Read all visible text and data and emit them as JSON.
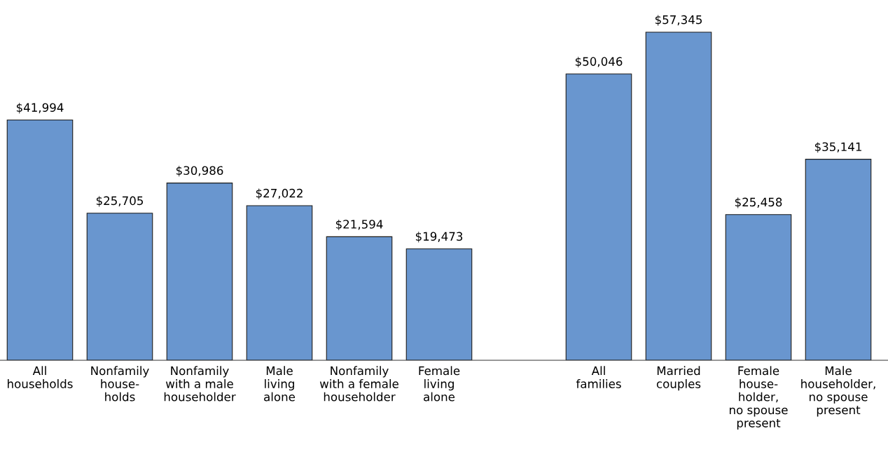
{
  "chart_data": {
    "type": "bar",
    "categories": [
      "All\nhouseholds",
      "Nonfamily\nhouse-\nholds",
      "Nonfamily\nwith a male\nhouseholder",
      "Male\nliving\nalone",
      "Nonfamily\nwith a female\nhouseholder",
      "Female\nliving\nalone",
      null,
      "All\nfamilies",
      "Married\ncouples",
      "Female\nhouse-\nholder,\nno spouse\npresent",
      "Male\nhouseholder,\nno spouse\npresent"
    ],
    "values": [
      41994,
      25705,
      30986,
      27022,
      21594,
      19473,
      null,
      50046,
      57345,
      25458,
      35141
    ],
    "value_labels": [
      "$41,994",
      "$25,705",
      "$30,986",
      "$27,022",
      "$21,594",
      "$19,473",
      null,
      "$50,046",
      "$57,345",
      "$25,458",
      "$35,141"
    ],
    "color": "#6996cf",
    "tick_labels": "x",
    "grid": false,
    "legend": false
  }
}
